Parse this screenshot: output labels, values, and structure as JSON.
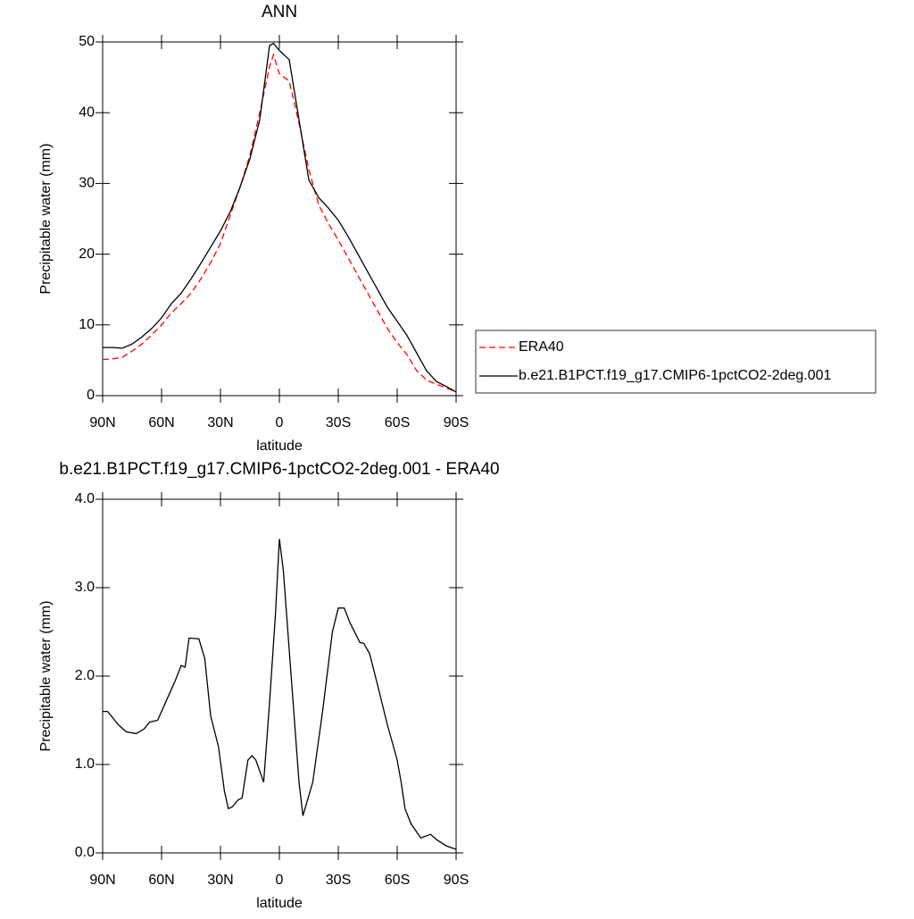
{
  "chart_data": [
    {
      "type": "line",
      "title": "ANN",
      "xlabel": "latitude",
      "ylabel": "Precipitable water (mm)",
      "x": [
        90,
        85,
        80,
        75,
        70,
        65,
        60,
        55,
        50,
        45,
        40,
        35,
        30,
        25,
        20,
        15,
        10,
        5,
        3,
        0,
        -5,
        -10,
        -15,
        -20,
        -25,
        -30,
        -35,
        -40,
        -45,
        -50,
        -55,
        -60,
        -65,
        -70,
        -75,
        -80,
        -85,
        -90
      ],
      "series": [
        {
          "name": "ERA40",
          "color": "#ff0000",
          "linestyle": "dashed",
          "values": [
            5.1,
            5.2,
            5.4,
            6.3,
            7.3,
            8.6,
            10,
            11.7,
            13,
            14.5,
            16.5,
            18.8,
            21.5,
            25.5,
            29.5,
            34,
            40,
            46.5,
            48.2,
            45.5,
            44.5,
            38.5,
            32,
            27,
            24.3,
            22,
            19.5,
            17,
            14.5,
            12,
            9.5,
            7.5,
            5.8,
            3.5,
            2.2,
            1.6,
            1.1,
            0.5
          ]
        },
        {
          "name": "b.e21.B1PCT.f19_g17.CMIP6-1pctCO2-2deg.001",
          "color": "#000000",
          "linestyle": "solid",
          "values": [
            6.8,
            6.8,
            6.7,
            7.3,
            8.3,
            9.5,
            11,
            13,
            14.5,
            16.5,
            18.7,
            21,
            23.3,
            26,
            29.5,
            33.5,
            39,
            49.5,
            49.8,
            48.8,
            47.5,
            39,
            30.5,
            28,
            26.5,
            24.8,
            22.5,
            20,
            17.5,
            15,
            12.5,
            10.5,
            8.5,
            6,
            3.5,
            2,
            1.3,
            0.5
          ]
        }
      ],
      "xlim": [
        90,
        -90
      ],
      "xticks": [
        {
          "value": 90,
          "label": "90N"
        },
        {
          "value": 60,
          "label": "60N"
        },
        {
          "value": 30,
          "label": "30N"
        },
        0,
        {
          "value": -30,
          "label": "30S"
        },
        {
          "value": -60,
          "label": "60S"
        },
        {
          "value": -90,
          "label": "90S"
        }
      ],
      "ylim": [
        0,
        50
      ],
      "yticks": [
        0,
        10,
        20,
        30,
        40,
        50
      ]
    },
    {
      "type": "line",
      "title": "b.e21.B1PCT.f19_g17.CMIP6-1pctCO2-2deg.001 - ERA40",
      "xlabel": "latitude",
      "ylabel": "Precipitable water (mm)",
      "x": [
        90,
        87.5,
        82,
        78,
        73,
        69,
        66,
        62,
        58,
        53,
        50,
        48,
        46,
        41,
        38,
        35,
        31,
        28,
        26,
        24,
        21,
        19,
        16,
        14,
        12,
        8,
        5,
        2,
        0,
        -2,
        -4,
        -10,
        -12,
        -17,
        -22,
        -27,
        -30,
        -33,
        -36,
        -41,
        -43,
        -46,
        -50,
        -55,
        -60,
        -62,
        -64,
        -67,
        -72,
        -77,
        -80,
        -85,
        -90
      ],
      "series": [
        {
          "color": "#000000",
          "linestyle": "solid",
          "values": [
            1.6,
            1.6,
            1.45,
            1.37,
            1.35,
            1.4,
            1.48,
            1.5,
            1.7,
            1.95,
            2.12,
            2.1,
            2.43,
            2.42,
            2.2,
            1.55,
            1.2,
            0.7,
            0.5,
            0.52,
            0.6,
            0.62,
            1.05,
            1.1,
            1.05,
            0.8,
            1.7,
            2.7,
            3.55,
            3.2,
            2.6,
            0.8,
            0.42,
            0.8,
            1.6,
            2.5,
            2.77,
            2.77,
            2.6,
            2.38,
            2.37,
            2.25,
            1.9,
            1.45,
            1.05,
            0.8,
            0.5,
            0.33,
            0.17,
            0.21,
            0.15,
            0.08,
            0.04
          ]
        }
      ],
      "xlim": [
        90,
        -90
      ],
      "xticks": [
        {
          "value": 90,
          "label": "90N"
        },
        {
          "value": 60,
          "label": "60N"
        },
        {
          "value": 30,
          "label": "30N"
        },
        0,
        {
          "value": -30,
          "label": "30S"
        },
        {
          "value": -60,
          "label": "60S"
        },
        {
          "value": -90,
          "label": "90S"
        }
      ],
      "ylim": [
        0,
        4
      ],
      "yticks": [
        {
          "value": 0,
          "label": "0.0"
        },
        {
          "value": 1,
          "label": "1.0"
        },
        {
          "value": 2,
          "label": "2.0"
        },
        {
          "value": 3,
          "label": "3.0"
        },
        {
          "value": 4,
          "label": "4.0"
        }
      ]
    }
  ]
}
